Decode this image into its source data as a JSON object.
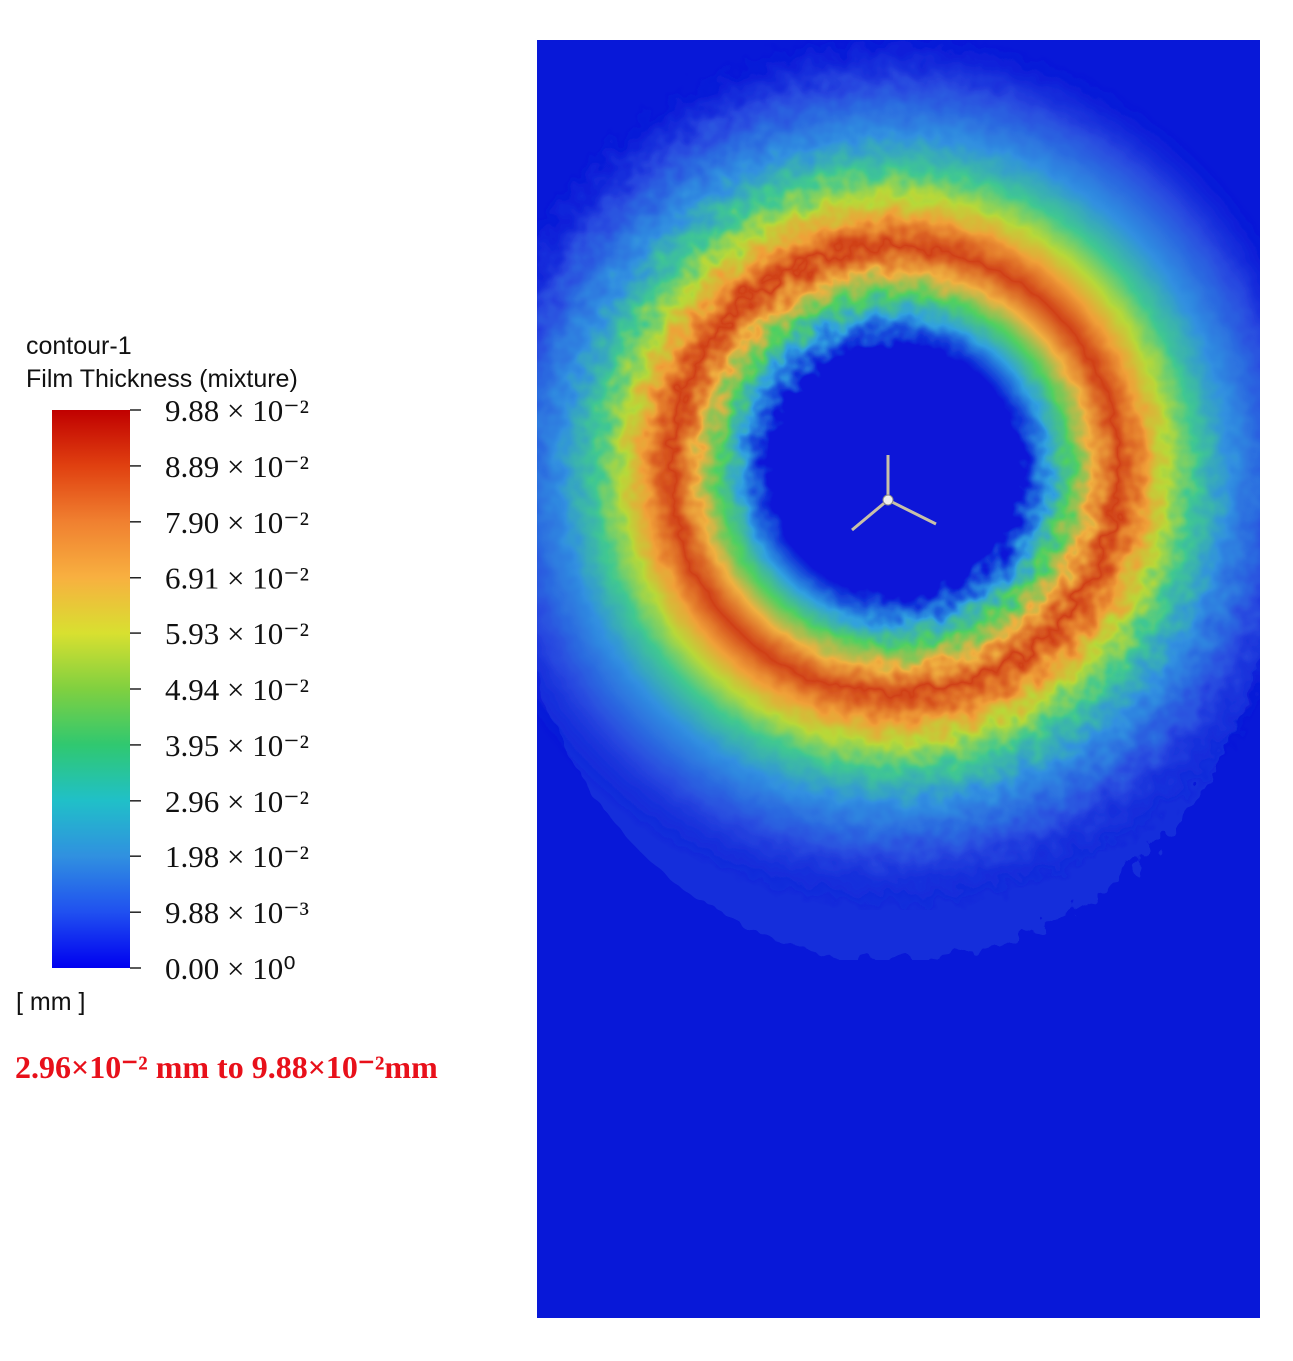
{
  "chart_data": {
    "type": "contour",
    "title": "contour-1",
    "subtitle": "Film Thickness (mixture)",
    "unit_label": "[ mm ]",
    "annotation": "2.96×10⁻² mm to 9.88×10⁻²mm",
    "clim": [
      0,
      0.0988
    ],
    "colormap": [
      "#0000f0",
      "#2050f0",
      "#3090e0",
      "#20c0c8",
      "#30c870",
      "#80d040",
      "#d8e030",
      "#f8b040",
      "#f08030",
      "#e04010",
      "#c00000"
    ],
    "cticks": [
      {
        "value": 0.0988,
        "label": "9.88 × 10⁻²"
      },
      {
        "value": 0.0889,
        "label": "8.89 × 10⁻²"
      },
      {
        "value": 0.079,
        "label": "7.90 × 10⁻²"
      },
      {
        "value": 0.0691,
        "label": "6.91 × 10⁻²"
      },
      {
        "value": 0.0593,
        "label": "5.93 × 10⁻²"
      },
      {
        "value": 0.0494,
        "label": "4.94 × 10⁻²"
      },
      {
        "value": 0.0395,
        "label": "3.95 × 10⁻²"
      },
      {
        "value": 0.0296,
        "label": "2.96 × 10⁻²"
      },
      {
        "value": 0.0198,
        "label": "1.98 × 10⁻²"
      },
      {
        "value": 0.00988,
        "label": "9.88 × 10⁻³"
      },
      {
        "value": 0,
        "label": "0.00 × 10⁰"
      }
    ]
  }
}
